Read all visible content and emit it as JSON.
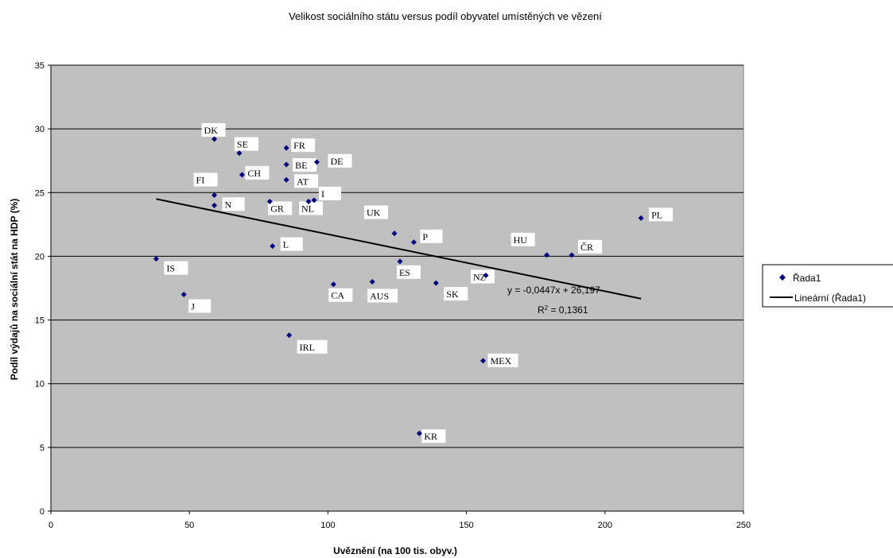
{
  "chart_data": {
    "type": "scatter",
    "title": "Velikost sociálního státu versus podíl obyvatel umístěných ve vězení",
    "xlabel": "Uvěznění (na 100 tis. obyv.)",
    "ylabel": "Podíl výdajů na sociální stát na HDP (%)",
    "xlim": [
      0,
      250
    ],
    "ylim": [
      0,
      35
    ],
    "x_ticks": [
      0,
      50,
      100,
      150,
      200,
      250
    ],
    "y_ticks": [
      0,
      5,
      10,
      15,
      20,
      25,
      30,
      35
    ],
    "grid": "horizontal",
    "legend_position": "right",
    "series": [
      {
        "name": "Řada1",
        "marker": "diamond",
        "color": "#000080",
        "points": [
          {
            "label": "DK",
            "x": 59,
            "y": 29.2
          },
          {
            "label": "SE",
            "x": 68,
            "y": 28.1
          },
          {
            "label": "FR",
            "x": 85,
            "y": 28.5
          },
          {
            "label": "BE",
            "x": 85,
            "y": 27.2
          },
          {
            "label": "DE",
            "x": 96,
            "y": 27.4
          },
          {
            "label": "CH",
            "x": 69,
            "y": 26.4
          },
          {
            "label": "AT",
            "x": 85,
            "y": 26.0
          },
          {
            "label": "FI",
            "x": 59,
            "y": 24.8
          },
          {
            "label": "I",
            "x": 95,
            "y": 24.4
          },
          {
            "label": "N",
            "x": 59,
            "y": 24.0
          },
          {
            "label": "GR",
            "x": 79,
            "y": 24.3
          },
          {
            "label": "NL",
            "x": 93,
            "y": 24.3
          },
          {
            "label": "UK",
            "x": 124,
            "y": 21.8
          },
          {
            "label": "P",
            "x": 131,
            "y": 21.1
          },
          {
            "label": "L",
            "x": 80,
            "y": 20.8
          },
          {
            "label": "IS",
            "x": 38,
            "y": 19.8
          },
          {
            "label": "ES",
            "x": 126,
            "y": 19.6
          },
          {
            "label": "CA",
            "x": 102,
            "y": 17.8
          },
          {
            "label": "AUS",
            "x": 116,
            "y": 18.0
          },
          {
            "label": "SK",
            "x": 139,
            "y": 17.9
          },
          {
            "label": "NZ",
            "x": 157,
            "y": 18.5
          },
          {
            "label": "J",
            "x": 48,
            "y": 17.0
          },
          {
            "label": "HU",
            "x": 179,
            "y": 20.1
          },
          {
            "label": "ČR",
            "x": 188,
            "y": 20.1
          },
          {
            "label": "PL",
            "x": 213,
            "y": 23.0
          },
          {
            "label": "IRL",
            "x": 86,
            "y": 13.8
          },
          {
            "label": "MEX",
            "x": 156,
            "y": 11.8
          },
          {
            "label": "KR",
            "x": 133,
            "y": 6.1
          }
        ]
      }
    ],
    "trendline": {
      "name": "Lineární (Řada1)",
      "slope": -0.0447,
      "intercept": 26.197,
      "x_range": [
        38,
        213
      ],
      "equation": "y = -0,0447x + 26,197",
      "r2_prefix": "R",
      "r2_sup": "2",
      "r2_value": " = 0,1361"
    },
    "colors": {
      "plot_background": "#c0c0c0",
      "marker": "#000080",
      "trendline": "#000000",
      "gridline": "#000000"
    }
  }
}
